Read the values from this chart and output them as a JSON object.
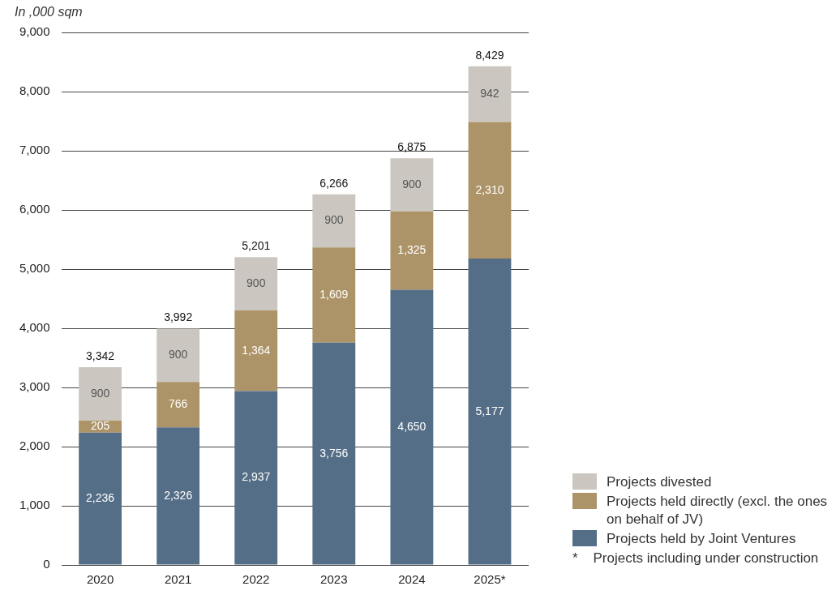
{
  "chart_data": {
    "type": "bar",
    "stacked": true,
    "ylabel": "In ,000 sqm",
    "categories": [
      "2020",
      "2021",
      "2022",
      "2023",
      "2024",
      "2025*"
    ],
    "series": [
      {
        "name": "Projects held by Joint Ventures",
        "color": "#546e87",
        "values": [
          2236,
          2326,
          2937,
          3756,
          4650,
          5177
        ],
        "value_labels": [
          "2,236",
          "2,326",
          "2,937",
          "3,756",
          "4,650",
          "5,177"
        ]
      },
      {
        "name": "Projects held directly (excl. the ones on behalf of JV)",
        "color": "#ad9468",
        "values": [
          205,
          766,
          1364,
          1609,
          1325,
          2310
        ],
        "value_labels": [
          "205",
          "766",
          "1,364",
          "1,609",
          "1,325",
          "2,310"
        ]
      },
      {
        "name": "Projects divested",
        "color": "#cbc7c0",
        "values": [
          900,
          900,
          900,
          900,
          900,
          942
        ],
        "value_labels": [
          "900",
          "900",
          "900",
          "900",
          "900",
          "942"
        ]
      }
    ],
    "totals": [
      "3,342",
      "3,992",
      "5,201",
      "6,266",
      "6,875",
      "8,429"
    ],
    "ylim": [
      0,
      9000
    ],
    "yticks": [
      0,
      {
        "value": 1000,
        "label": "1,000"
      },
      {
        "value": 2000,
        "label": "2,000"
      },
      {
        "value": 3000,
        "label": "3,000"
      },
      {
        "value": 4000,
        "label": "4,000"
      },
      {
        "value": 5000,
        "label": "5,000"
      },
      {
        "value": 6000,
        "label": "6,000"
      },
      {
        "value": 7000,
        "label": "7,000"
      },
      {
        "value": 8000,
        "label": "8,000"
      },
      {
        "value": 9000,
        "label": "9,000"
      }
    ],
    "grid": "y",
    "legend": "bottom right",
    "annotations": [
      "*    Projects including under construction"
    ]
  }
}
